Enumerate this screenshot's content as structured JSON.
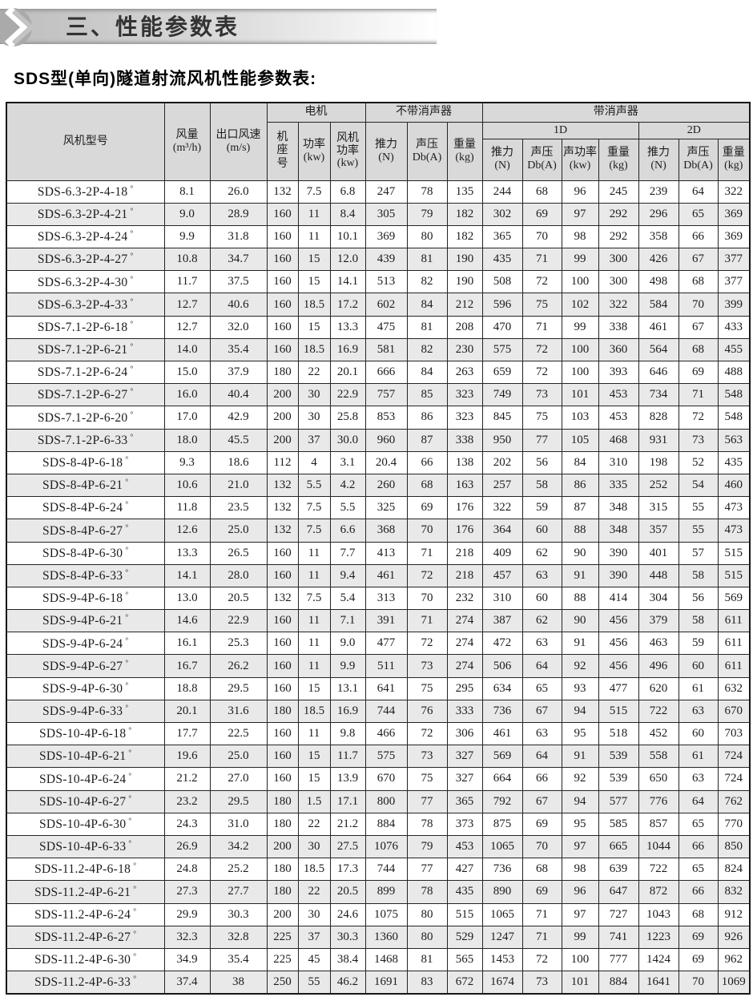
{
  "page": {
    "banner_title": "三、性能参数表",
    "subtitle": "SDS型(单向)隧道射流风机性能参数表:"
  },
  "table": {
    "groups": {
      "motor": "电机",
      "no_silencer": "不带消声器",
      "with_silencer": "带消声器",
      "d1": "1D",
      "d2": "2D"
    },
    "columns": {
      "model": "风机型号",
      "volume": "风量 (m³/h)",
      "speed": "出口风速 (m/s)",
      "frame": "机座号",
      "power": "功率 (kw)",
      "fan_power": "风机 功率 (kw)",
      "thrust": "推力 (N)",
      "spl": "声压 Db(A)",
      "sound_power": "声功率 (kw)",
      "weight": "重量 (kg)"
    },
    "rows": [
      [
        "SDS-6.3-2P-4-18°",
        "8.1",
        "26.0",
        "132",
        "7.5",
        "6.8",
        "247",
        "78",
        "135",
        "244",
        "68",
        "96",
        "245",
        "239",
        "64",
        "322"
      ],
      [
        "SDS-6.3-2P-4-21°",
        "9.0",
        "28.9",
        "160",
        "11",
        "8.4",
        "305",
        "79",
        "182",
        "302",
        "69",
        "97",
        "292",
        "296",
        "65",
        "369"
      ],
      [
        "SDS-6.3-2P-4-24°",
        "9.9",
        "31.8",
        "160",
        "11",
        "10.1",
        "369",
        "80",
        "182",
        "365",
        "70",
        "98",
        "292",
        "358",
        "66",
        "369"
      ],
      [
        "SDS-6.3-2P-4-27°",
        "10.8",
        "34.7",
        "160",
        "15",
        "12.0",
        "439",
        "81",
        "190",
        "435",
        "71",
        "99",
        "300",
        "426",
        "67",
        "377"
      ],
      [
        "SDS-6.3-2P-4-30°",
        "11.7",
        "37.5",
        "160",
        "15",
        "14.1",
        "513",
        "82",
        "190",
        "508",
        "72",
        "100",
        "300",
        "498",
        "68",
        "377"
      ],
      [
        "SDS-6.3-2P-4-33°",
        "12.7",
        "40.6",
        "160",
        "18.5",
        "17.2",
        "602",
        "84",
        "212",
        "596",
        "75",
        "102",
        "322",
        "584",
        "70",
        "399"
      ],
      [
        "SDS-7.1-2P-6-18°",
        "12.7",
        "32.0",
        "160",
        "15",
        "13.3",
        "475",
        "81",
        "208",
        "470",
        "71",
        "99",
        "338",
        "461",
        "67",
        "433"
      ],
      [
        "SDS-7.1-2P-6-21°",
        "14.0",
        "35.4",
        "160",
        "18.5",
        "16.9",
        "581",
        "82",
        "230",
        "575",
        "72",
        "100",
        "360",
        "564",
        "68",
        "455"
      ],
      [
        "SDS-7.1-2P-6-24°",
        "15.0",
        "37.9",
        "180",
        "22",
        "20.1",
        "666",
        "84",
        "263",
        "659",
        "72",
        "100",
        "393",
        "646",
        "69",
        "488"
      ],
      [
        "SDS-7.1-2P-6-27°",
        "16.0",
        "40.4",
        "200",
        "30",
        "22.9",
        "757",
        "85",
        "323",
        "749",
        "73",
        "101",
        "453",
        "734",
        "71",
        "548"
      ],
      [
        "SDS-7.1-2P-6-20°",
        "17.0",
        "42.9",
        "200",
        "30",
        "25.8",
        "853",
        "86",
        "323",
        "845",
        "75",
        "103",
        "453",
        "828",
        "72",
        "548"
      ],
      [
        "SDS-7.1-2P-6-33°",
        "18.0",
        "45.5",
        "200",
        "37",
        "30.0",
        "960",
        "87",
        "338",
        "950",
        "77",
        "105",
        "468",
        "931",
        "73",
        "563"
      ],
      [
        "SDS-8-4P-6-18°",
        "9.3",
        "18.6",
        "112",
        "4",
        "3.1",
        "20.4",
        "66",
        "138",
        "202",
        "56",
        "84",
        "310",
        "198",
        "52",
        "435"
      ],
      [
        "SDS-8-4P-6-21°",
        "10.6",
        "21.0",
        "132",
        "5.5",
        "4.2",
        "260",
        "68",
        "163",
        "257",
        "58",
        "86",
        "335",
        "252",
        "54",
        "460"
      ],
      [
        "SDS-8-4P-6-24°",
        "11.8",
        "23.5",
        "132",
        "7.5",
        "5.5",
        "325",
        "69",
        "176",
        "322",
        "59",
        "87",
        "348",
        "315",
        "55",
        "473"
      ],
      [
        "SDS-8-4P-6-27°",
        "12.6",
        "25.0",
        "132",
        "7.5",
        "6.6",
        "368",
        "70",
        "176",
        "364",
        "60",
        "88",
        "348",
        "357",
        "55",
        "473"
      ],
      [
        "SDS-8-4P-6-30°",
        "13.3",
        "26.5",
        "160",
        "11",
        "7.7",
        "413",
        "71",
        "218",
        "409",
        "62",
        "90",
        "390",
        "401",
        "57",
        "515"
      ],
      [
        "SDS-8-4P-6-33°",
        "14.1",
        "28.0",
        "160",
        "11",
        "9.4",
        "461",
        "72",
        "218",
        "457",
        "63",
        "91",
        "390",
        "448",
        "58",
        "515"
      ],
      [
        "SDS-9-4P-6-18°",
        "13.0",
        "20.5",
        "132",
        "7.5",
        "5.4",
        "313",
        "70",
        "232",
        "310",
        "60",
        "88",
        "414",
        "304",
        "56",
        "569"
      ],
      [
        "SDS-9-4P-6-21°",
        "14.6",
        "22.9",
        "160",
        "11",
        "7.1",
        "391",
        "71",
        "274",
        "387",
        "62",
        "90",
        "456",
        "379",
        "58",
        "611"
      ],
      [
        "SDS-9-4P-6-24°",
        "16.1",
        "25.3",
        "160",
        "11",
        "9.0",
        "477",
        "72",
        "274",
        "472",
        "63",
        "91",
        "456",
        "463",
        "59",
        "611"
      ],
      [
        "SDS-9-4P-6-27°",
        "16.7",
        "26.2",
        "160",
        "11",
        "9.9",
        "511",
        "73",
        "274",
        "506",
        "64",
        "92",
        "456",
        "496",
        "60",
        "611"
      ],
      [
        "SDS-9-4P-6-30°",
        "18.8",
        "29.5",
        "160",
        "15",
        "13.1",
        "641",
        "75",
        "295",
        "634",
        "65",
        "93",
        "477",
        "620",
        "61",
        "632"
      ],
      [
        "SDS-9-4P-6-33°",
        "20.1",
        "31.6",
        "180",
        "18.5",
        "16.9",
        "744",
        "76",
        "333",
        "736",
        "67",
        "94",
        "515",
        "722",
        "63",
        "670"
      ],
      [
        "SDS-10-4P-6-18°",
        "17.7",
        "22.5",
        "160",
        "11",
        "9.8",
        "466",
        "72",
        "306",
        "461",
        "63",
        "95",
        "518",
        "452",
        "60",
        "703"
      ],
      [
        "SDS-10-4P-6-21°",
        "19.6",
        "25.0",
        "160",
        "15",
        "11.7",
        "575",
        "73",
        "327",
        "569",
        "64",
        "91",
        "539",
        "558",
        "61",
        "724"
      ],
      [
        "SDS-10-4P-6-24°",
        "21.2",
        "27.0",
        "160",
        "15",
        "13.9",
        "670",
        "75",
        "327",
        "664",
        "66",
        "92",
        "539",
        "650",
        "63",
        "724"
      ],
      [
        "SDS-10-4P-6-27°",
        "23.2",
        "29.5",
        "180",
        "1.5",
        "17.1",
        "800",
        "77",
        "365",
        "792",
        "67",
        "94",
        "577",
        "776",
        "64",
        "762"
      ],
      [
        "SDS-10-4P-6-30°",
        "24.3",
        "31.0",
        "180",
        "22",
        "21.2",
        "884",
        "78",
        "373",
        "875",
        "69",
        "95",
        "585",
        "857",
        "65",
        "770"
      ],
      [
        "SDS-10-4P-6-33°",
        "26.9",
        "34.2",
        "200",
        "30",
        "27.5",
        "1076",
        "79",
        "453",
        "1065",
        "70",
        "97",
        "665",
        "1044",
        "66",
        "850"
      ],
      [
        "SDS-11.2-4P-6-18°",
        "24.8",
        "25.2",
        "180",
        "18.5",
        "17.3",
        "744",
        "77",
        "427",
        "736",
        "68",
        "98",
        "639",
        "722",
        "65",
        "824"
      ],
      [
        "SDS-11.2-4P-6-21°",
        "27.3",
        "27.7",
        "180",
        "22",
        "20.5",
        "899",
        "78",
        "435",
        "890",
        "69",
        "96",
        "647",
        "872",
        "66",
        "832"
      ],
      [
        "SDS-11.2-4P-6-24°",
        "29.9",
        "30.3",
        "200",
        "30",
        "24.6",
        "1075",
        "80",
        "515",
        "1065",
        "71",
        "97",
        "727",
        "1043",
        "68",
        "912"
      ],
      [
        "SDS-11.2-4P-6-27°",
        "32.3",
        "32.8",
        "225",
        "37",
        "30.3",
        "1360",
        "80",
        "529",
        "1247",
        "71",
        "99",
        "741",
        "1223",
        "69",
        "926"
      ],
      [
        "SDS-11.2-4P-6-30°",
        "34.9",
        "35.4",
        "225",
        "45",
        "38.4",
        "1468",
        "81",
        "565",
        "1453",
        "72",
        "100",
        "777",
        "1424",
        "69",
        "962"
      ],
      [
        "SDS-11.2-4P-6-33°",
        "37.4",
        "38",
        "250",
        "55",
        "46.2",
        "1691",
        "83",
        "672",
        "1674",
        "73",
        "101",
        "884",
        "1641",
        "70",
        "1069"
      ]
    ]
  }
}
